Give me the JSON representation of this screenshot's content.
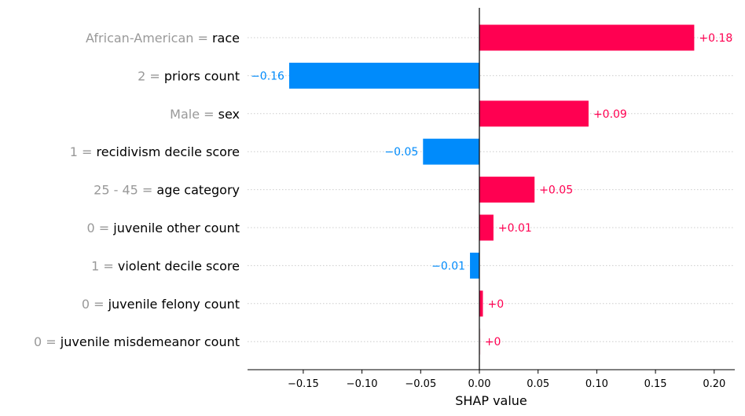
{
  "chart_data": {
    "type": "bar",
    "orientation": "horizontal",
    "xlabel": "SHAP value",
    "xlim": [
      -0.198,
      0.22
    ],
    "xticks": [
      -0.15,
      -0.1,
      -0.05,
      0.0,
      0.05,
      0.1,
      0.15,
      0.2
    ],
    "xtick_labels": [
      "−0.15",
      "−0.10",
      "−0.05",
      "0.00",
      "0.05",
      "0.10",
      "0.15",
      "0.20"
    ],
    "grid": "horizontal dotted lines per feature row",
    "colors": {
      "positive": "#ff0051",
      "negative": "#008bfb",
      "zero": "#f3dbe2",
      "feature_value_text": "#999999"
    },
    "features": [
      {
        "feature": "race",
        "feature_value": "African-American",
        "value": 0.183,
        "label": "+0.18"
      },
      {
        "feature": "priors count",
        "feature_value": "2",
        "value": -0.162,
        "label": "−0.16"
      },
      {
        "feature": "sex",
        "feature_value": "Male",
        "value": 0.093,
        "label": "+0.09"
      },
      {
        "feature": "recidivism decile score",
        "feature_value": "1",
        "value": -0.048,
        "label": "−0.05"
      },
      {
        "feature": "age category",
        "feature_value": "25 - 45",
        "value": 0.047,
        "label": "+0.05"
      },
      {
        "feature": "juvenile other count",
        "feature_value": "0",
        "value": 0.012,
        "label": "+0.01"
      },
      {
        "feature": "violent decile score",
        "feature_value": "1",
        "value": -0.008,
        "label": "−0.01"
      },
      {
        "feature": "juvenile felony count",
        "feature_value": "0",
        "value": 0.003,
        "label": "+0"
      },
      {
        "feature": "juvenile misdemeanor count",
        "feature_value": "0",
        "value": 0.0005,
        "label": "+0"
      }
    ]
  }
}
